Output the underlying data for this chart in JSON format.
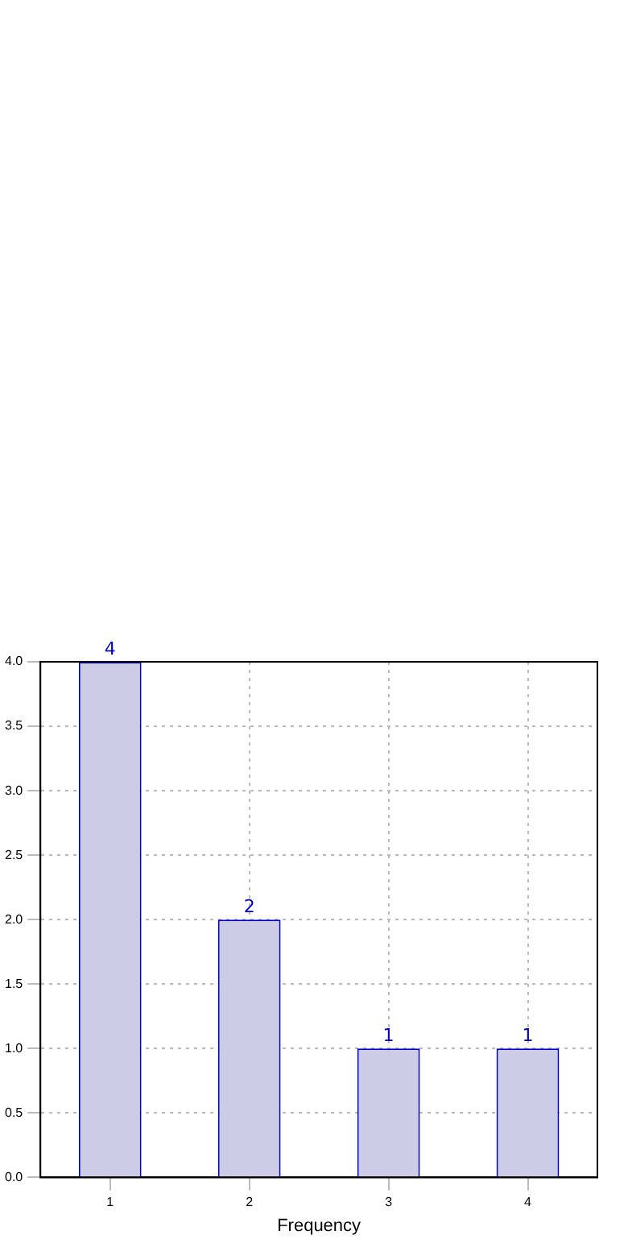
{
  "chart_data": {
    "type": "bar",
    "xlabel": "Frequency",
    "categories": [
      "1",
      "2",
      "3",
      "4"
    ],
    "values": [
      4,
      2,
      1,
      1
    ],
    "color": "#cccce6",
    "ylim": [
      0,
      4
    ],
    "yticks": [
      {
        "value": 0,
        "label": "0.0"
      },
      {
        "value": 0.5,
        "label": "0.5"
      },
      {
        "value": 1,
        "label": "1.0"
      },
      {
        "value": 1.5,
        "label": "1.5"
      },
      {
        "value": 2,
        "label": "2.0"
      },
      {
        "value": 2.5,
        "label": "2.5"
      },
      {
        "value": 3,
        "label": "3.0"
      },
      {
        "value": 3.5,
        "label": "3.5"
      },
      {
        "value": 4,
        "label": "4.0"
      }
    ],
    "grid": true,
    "data_labels": true,
    "legend": false
  }
}
